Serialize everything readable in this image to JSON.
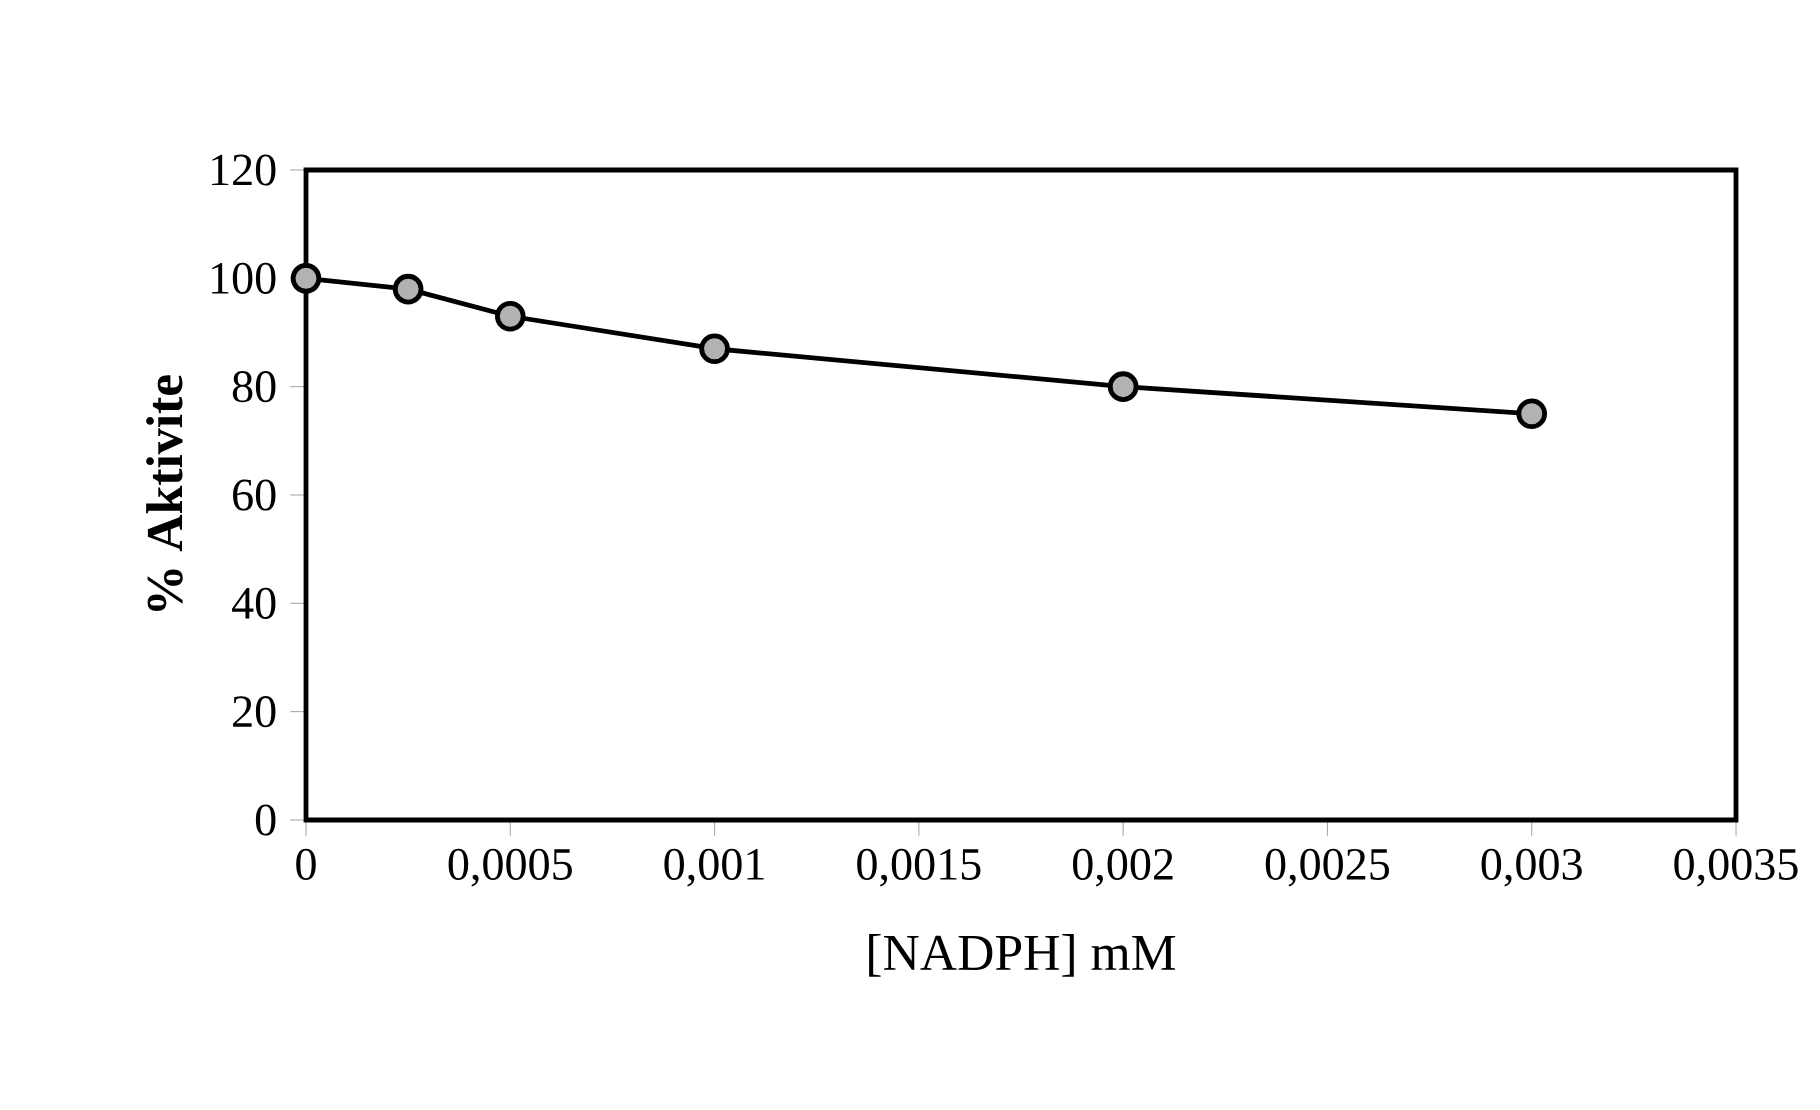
{
  "chart_data": {
    "type": "line",
    "xlabel": "[NADPH] mM",
    "ylabel": "% Aktivite",
    "x": [
      0,
      0.00025,
      0.0005,
      0.001,
      0.002,
      0.003
    ],
    "series": [
      {
        "color": "#000000",
        "values": [
          100,
          98,
          93,
          87,
          80,
          75
        ]
      }
    ],
    "xlim": [
      0,
      0.0035
    ],
    "xticks": [
      0,
      {
        "value": 0.0005,
        "label": "0,0005"
      },
      {
        "value": 0.001,
        "label": "0,001"
      },
      {
        "value": 0.0015,
        "label": "0,0015"
      },
      {
        "value": 0.002,
        "label": "0,002"
      },
      {
        "value": 0.0025,
        "label": "0,0025"
      },
      {
        "value": 0.003,
        "label": "0,003"
      },
      {
        "value": 0.0035,
        "label": "0,0035"
      }
    ],
    "ylim": [
      0,
      120
    ],
    "yticks": [
      0,
      20,
      40,
      60,
      80,
      100,
      120
    ],
    "marker": "circle",
    "line_style": "solid"
  }
}
